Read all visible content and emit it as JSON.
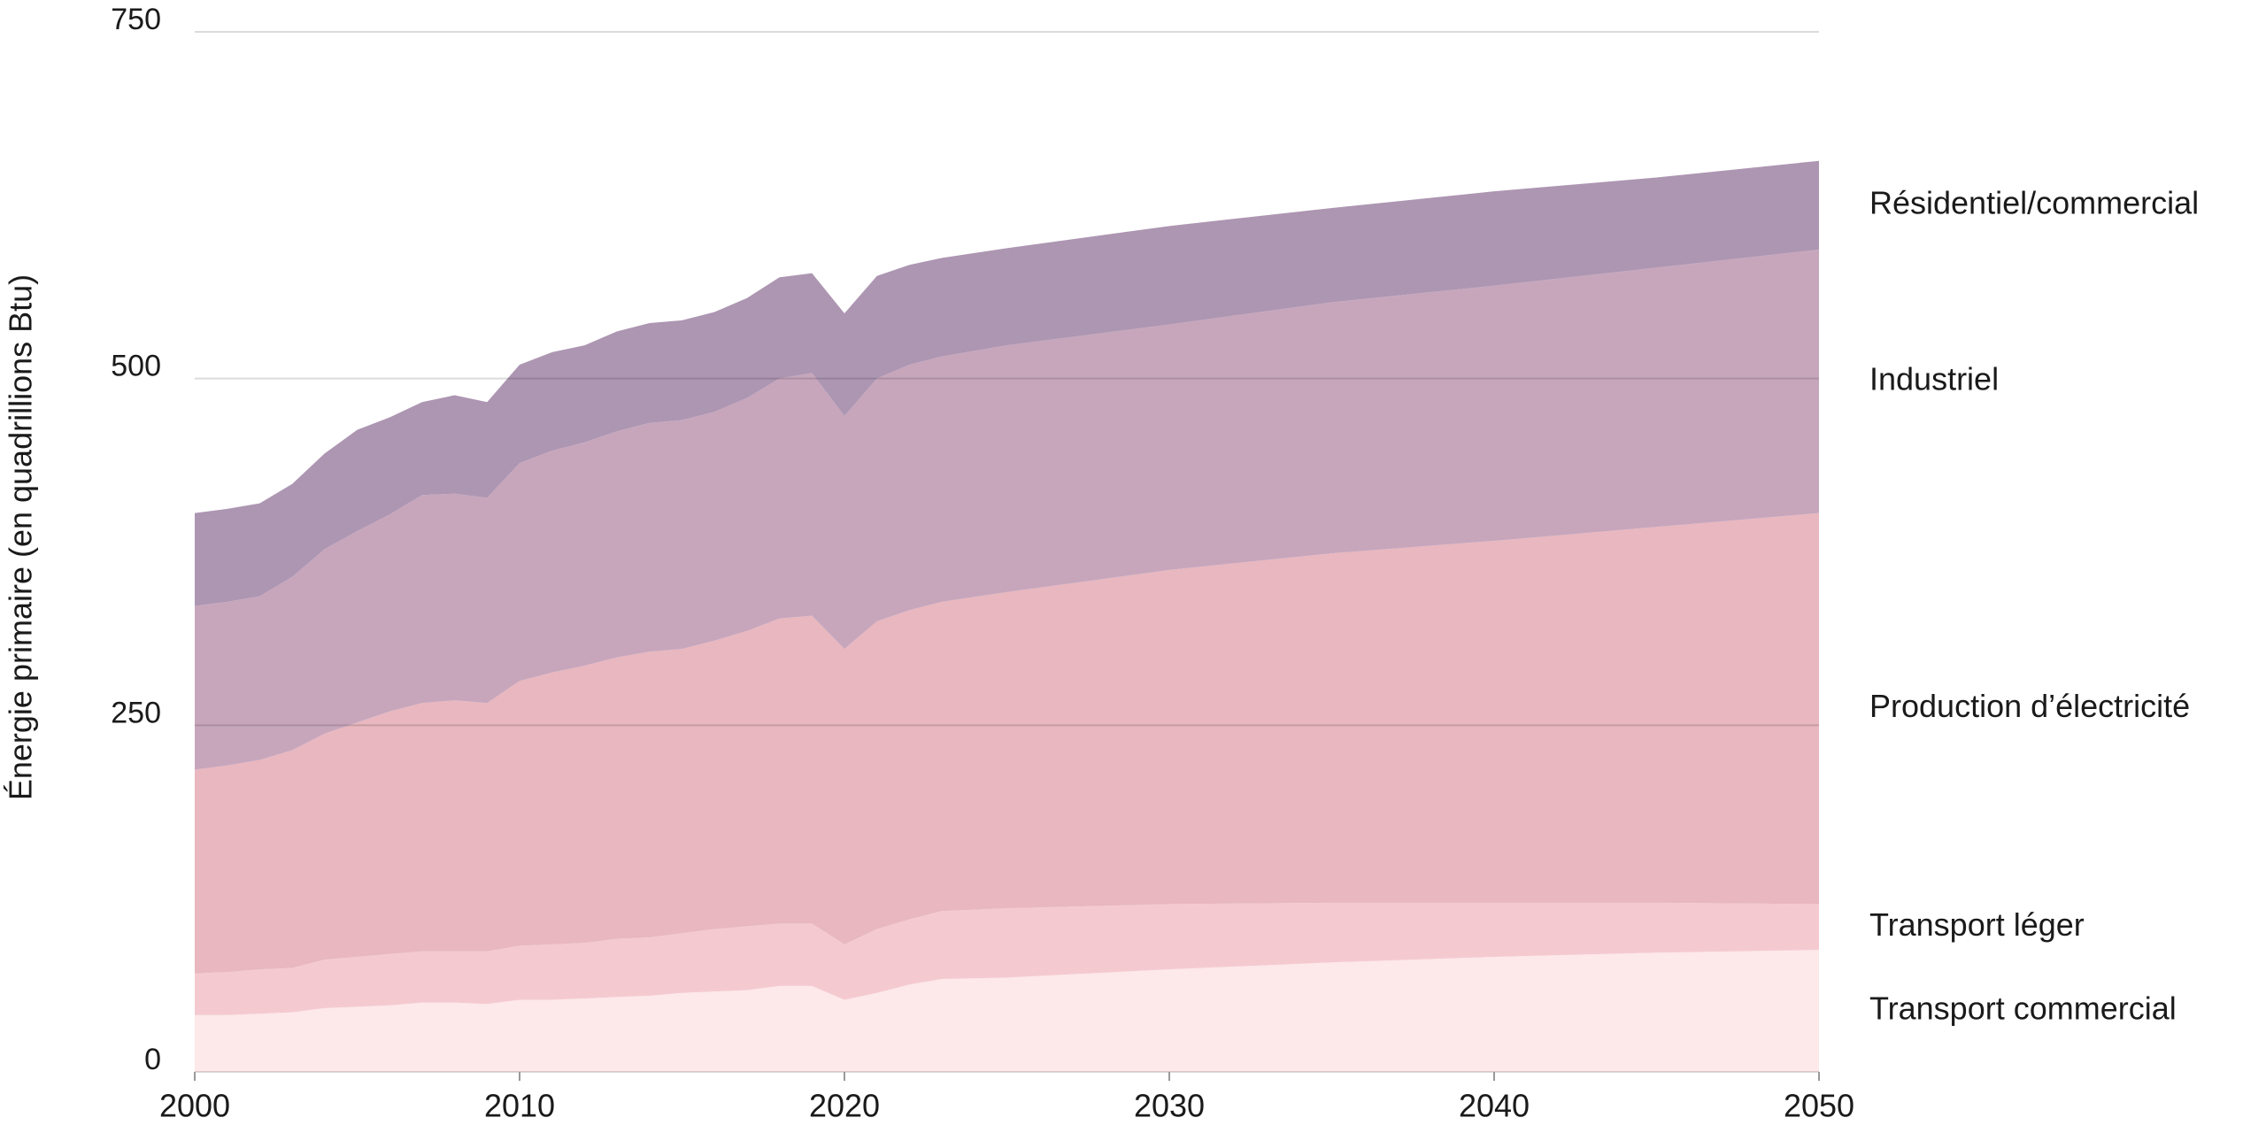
{
  "chart_data": {
    "type": "stacked-area",
    "ylabel": "Énergie primaire (en quadrillions Btu)",
    "x": [
      2000,
      2001,
      2002,
      2003,
      2004,
      2005,
      2006,
      2007,
      2008,
      2009,
      2010,
      2011,
      2012,
      2013,
      2014,
      2015,
      2016,
      2017,
      2018,
      2019,
      2020,
      2021,
      2022,
      2023,
      2025,
      2030,
      2035,
      2040,
      2045,
      2050
    ],
    "series": [
      {
        "name": "Transport commercial",
        "color": "#fde8ea",
        "values": [
          41,
          41,
          42,
          43,
          46,
          47,
          48,
          50,
          50,
          49,
          52,
          52,
          53,
          54,
          55,
          57,
          58,
          59,
          62,
          62,
          52,
          57,
          63,
          67,
          68,
          74,
          79,
          83,
          86,
          88
        ]
      },
      {
        "name": "Transport léger",
        "color": "#f4cad0",
        "values": [
          30,
          31,
          32,
          32,
          35,
          36,
          37,
          37,
          37,
          38,
          39,
          40,
          40,
          42,
          42,
          43,
          45,
          46,
          45,
          45,
          40,
          46,
          47,
          49,
          50,
          47,
          43,
          39,
          36,
          33
        ]
      },
      {
        "name": "Production d’électricité",
        "color": "#e8b7bf",
        "values": [
          147,
          149,
          151,
          157,
          163,
          169,
          175,
          179,
          181,
          179,
          191,
          196,
          200,
          203,
          206,
          205,
          208,
          213,
          220,
          222,
          213,
          222,
          223,
          223,
          228,
          241,
          252,
          261,
          271,
          282
        ]
      },
      {
        "name": "Industriel",
        "color": "#c7a6bc",
        "values": [
          118,
          118,
          118,
          125,
          133,
          138,
          142,
          150,
          149,
          148,
          157,
          160,
          161,
          163,
          165,
          165,
          165,
          168,
          173,
          175,
          168,
          175,
          177,
          177,
          178,
          177,
          181,
          184,
          187,
          190
        ]
      },
      {
        "name": "Résidentiel/commercial",
        "color": "#ad96b2",
        "values": [
          67,
          67,
          67,
          67,
          69,
          73,
          70,
          67,
          71,
          69,
          71,
          71,
          70,
          72,
          72,
          72,
          72,
          72,
          73,
          72,
          74,
          74,
          72,
          71,
          70,
          71,
          68,
          68,
          65,
          64
        ]
      }
    ],
    "xlim": [
      2000,
      2050
    ],
    "xticks": [
      2000,
      2010,
      2020,
      2030,
      2040,
      2050
    ],
    "ylim": [
      0,
      750
    ],
    "yticks": [
      0,
      250,
      500,
      750
    ],
    "grid": true
  }
}
